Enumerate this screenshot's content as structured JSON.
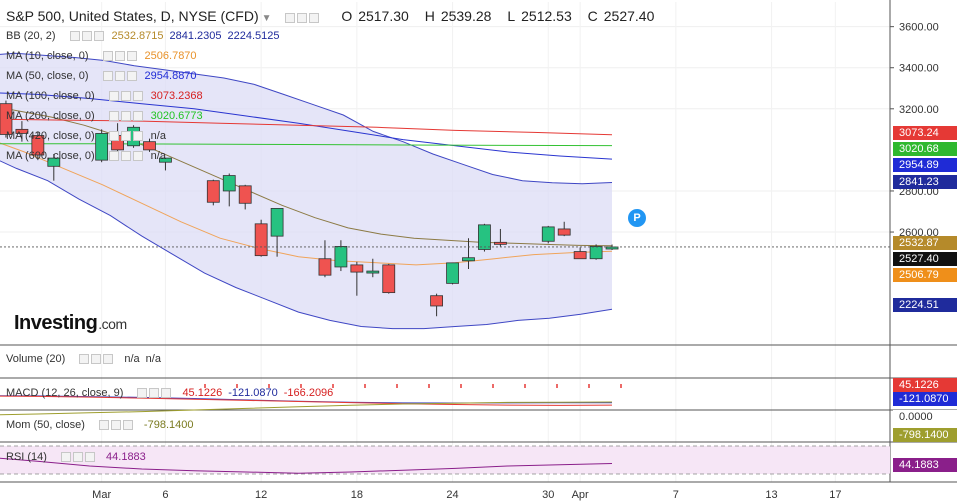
{
  "header": {
    "symbol": "S&P 500, United States, D, NYSE (CFD)",
    "open_label": "O",
    "open": "2517.30",
    "high_label": "H",
    "high": "2539.28",
    "low_label": "L",
    "low": "2512.53",
    "close_label": "C",
    "close": "2527.40"
  },
  "indicators": [
    {
      "label": "BB (20, 2)",
      "values": [
        {
          "text": "2532.8715",
          "color": "#b58a2a"
        },
        {
          "text": "2841.2305",
          "color": "#1f2b9c"
        },
        {
          "text": "2224.5125",
          "color": "#1f2b9c"
        }
      ]
    },
    {
      "label": "MA (10, close, 0)",
      "values": [
        {
          "text": "2506.7870",
          "color": "#e8922a"
        }
      ]
    },
    {
      "label": "MA (50, close, 0)",
      "values": [
        {
          "text": "2954.8870",
          "color": "#1f2bd6"
        }
      ]
    },
    {
      "label": "MA (100, close, 0)",
      "values": [
        {
          "text": "3073.2368",
          "color": "#d62020"
        }
      ]
    },
    {
      "label": "MA (200, close, 0)",
      "values": [
        {
          "text": "3020.6773",
          "color": "#22c422"
        }
      ]
    },
    {
      "label": "MA (420, close, 0)",
      "values": [
        {
          "text": "n/a",
          "color": "#333333"
        }
      ]
    },
    {
      "label": "MA (600, close, 0)",
      "values": [
        {
          "text": "n/a",
          "color": "#333333"
        }
      ]
    }
  ],
  "logo": {
    "name": "Investing",
    "suffix": ".com",
    "badge": "P"
  },
  "panels": {
    "volume": {
      "label": "Volume (20)",
      "values": [
        "n/a",
        "n/a"
      ]
    },
    "macd": {
      "label": "MACD (12, 26, close, 9)",
      "values": [
        {
          "text": "45.1226",
          "color": "#d62020"
        },
        {
          "text": "-121.0870",
          "color": "#1f2b9c"
        },
        {
          "text": "-166.2096",
          "color": "#d62020"
        }
      ],
      "tags": [
        "45.1226",
        "-121.0870"
      ]
    },
    "mom": {
      "label": "Mom (50, close)",
      "value": "-798.1400",
      "tags": [
        "0.0000",
        "-798.1400"
      ]
    },
    "rsi": {
      "label": "RSI (14)",
      "value": "44.1883",
      "tag": "44.1883"
    }
  },
  "price_tags": [
    {
      "text": "3073.24",
      "value": 3073.24,
      "color": "#e53935"
    },
    {
      "text": "3020.68",
      "value": 3020.68,
      "color": "#2eb82e"
    },
    {
      "text": "2954.89",
      "value": 2954.89,
      "color": "#1f2bd6"
    },
    {
      "text": "2841.23",
      "value": 2841.23,
      "color": "#1f2b9c"
    },
    {
      "text": "2532.87",
      "value": 2532.87,
      "color": "#b58a2a"
    },
    {
      "text": "2527.40",
      "value": 2527.4,
      "color": "#111111"
    },
    {
      "text": "2506.79",
      "value": 2506.79,
      "color": "#ef8f1a"
    },
    {
      "text": "2224.51",
      "value": 2224.51,
      "color": "#1f2b9c"
    }
  ],
  "chart_data": {
    "type": "candlestick",
    "yticks": [
      "3600.00",
      "3400.00",
      "3200.00",
      "2800.00",
      "2600.00"
    ],
    "ytick_values": [
      3600,
      3400,
      3200,
      2800,
      2600
    ],
    "xticks": [
      {
        "label": "Mar",
        "x": "2020-03-02"
      },
      {
        "label": "6",
        "x": "2020-03-06"
      },
      {
        "label": "12",
        "x": "2020-03-12"
      },
      {
        "label": "18",
        "x": "2020-03-18"
      },
      {
        "label": "24",
        "x": "2020-03-24"
      },
      {
        "label": "30",
        "x": "2020-03-30"
      },
      {
        "label": "Apr",
        "x": "2020-04-01"
      },
      {
        "label": "7",
        "x": "2020-04-07"
      },
      {
        "label": "13",
        "x": "2020-04-13"
      },
      {
        "label": "17",
        "x": "2020-04-17"
      }
    ],
    "ylim": [
      2050,
      3720
    ],
    "candles": [
      {
        "date": "2020-02-24",
        "o": 3250,
        "h": 3260,
        "l": 3170,
        "c": 3225
      },
      {
        "date": "2020-02-25",
        "o": 3225,
        "h": 3240,
        "l": 3060,
        "c": 3075
      },
      {
        "date": "2020-02-26",
        "o": 3100,
        "h": 3140,
        "l": 3040,
        "c": 3080
      },
      {
        "date": "2020-02-27",
        "o": 3070,
        "h": 3090,
        "l": 2950,
        "c": 2975
      },
      {
        "date": "2020-02-28",
        "o": 2920,
        "h": 2980,
        "l": 2850,
        "c": 2960
      },
      {
        "date": "2020-03-02",
        "o": 2950,
        "h": 3100,
        "l": 2940,
        "c": 3080
      },
      {
        "date": "2020-03-03",
        "o": 3070,
        "h": 3130,
        "l": 2980,
        "c": 3000
      },
      {
        "date": "2020-03-04",
        "o": 3020,
        "h": 3120,
        "l": 3010,
        "c": 3110
      },
      {
        "date": "2020-03-05",
        "o": 3040,
        "h": 3055,
        "l": 2990,
        "c": 3000
      },
      {
        "date": "2020-03-06",
        "o": 2940,
        "h": 2960,
        "l": 2900,
        "c": 2960
      },
      {
        "date": "2020-03-09",
        "o": 2850,
        "h": 2855,
        "l": 2730,
        "c": 2745
      },
      {
        "date": "2020-03-10",
        "o": 2800,
        "h": 2885,
        "l": 2725,
        "c": 2875
      },
      {
        "date": "2020-03-11",
        "o": 2825,
        "h": 2830,
        "l": 2710,
        "c": 2740
      },
      {
        "date": "2020-03-12",
        "o": 2640,
        "h": 2660,
        "l": 2480,
        "c": 2485
      },
      {
        "date": "2020-03-13",
        "o": 2580,
        "h": 2715,
        "l": 2480,
        "c": 2715
      },
      {
        "date": "2020-03-16",
        "o": 2470,
        "h": 2560,
        "l": 2380,
        "c": 2390
      },
      {
        "date": "2020-03-17",
        "o": 2430,
        "h": 2560,
        "l": 2410,
        "c": 2530
      },
      {
        "date": "2020-03-18",
        "o": 2440,
        "h": 2455,
        "l": 2290,
        "c": 2405
      },
      {
        "date": "2020-03-19",
        "o": 2405,
        "h": 2470,
        "l": 2380,
        "c": 2410
      },
      {
        "date": "2020-03-20",
        "o": 2440,
        "h": 2445,
        "l": 2300,
        "c": 2305
      },
      {
        "date": "2020-03-23",
        "o": 2290,
        "h": 2300,
        "l": 2190,
        "c": 2240
      },
      {
        "date": "2020-03-24",
        "o": 2350,
        "h": 2450,
        "l": 2345,
        "c": 2450
      },
      {
        "date": "2020-03-25",
        "o": 2460,
        "h": 2570,
        "l": 2420,
        "c": 2475
      },
      {
        "date": "2020-03-26",
        "o": 2515,
        "h": 2640,
        "l": 2505,
        "c": 2635
      },
      {
        "date": "2020-03-27",
        "o": 2550,
        "h": 2615,
        "l": 2530,
        "c": 2540
      },
      {
        "date": "2020-03-30",
        "o": 2555,
        "h": 2630,
        "l": 2545,
        "c": 2625
      },
      {
        "date": "2020-03-31",
        "o": 2615,
        "h": 2650,
        "l": 2580,
        "c": 2585
      },
      {
        "date": "2020-04-01",
        "o": 2505,
        "h": 2525,
        "l": 2480,
        "c": 2470
      },
      {
        "date": "2020-04-02",
        "o": 2470,
        "h": 2540,
        "l": 2465,
        "c": 2530
      },
      {
        "date": "2020-04-03",
        "o": 2517.3,
        "h": 2539.28,
        "l": 2512.53,
        "c": 2527.4
      }
    ],
    "bb_upper": [
      3460,
      3470,
      3460,
      3450,
      3435,
      3410,
      3390,
      3370,
      3350,
      3320,
      3270,
      3220,
      3170,
      3090,
      3040,
      2980,
      2930,
      2880,
      2850,
      2840,
      2835,
      2841.23
    ],
    "bb_lower": [
      2980,
      2910,
      2850,
      2760,
      2680,
      2580,
      2490,
      2400,
      2330,
      2270,
      2210,
      2170,
      2140,
      2130,
      2130,
      2140,
      2150,
      2170,
      2180,
      2200,
      2224.51
    ],
    "bb_mid": [
      3220,
      3190,
      3160,
      3120,
      3070,
      3010,
      2940,
      2870,
      2800,
      2730,
      2670,
      2620,
      2590,
      2570,
      2560,
      2550,
      2545,
      2540,
      2535,
      2532.87
    ],
    "ma10": [
      3060,
      2990,
      2910,
      2830,
      2740,
      2650,
      2570,
      2520,
      2480,
      2460,
      2450,
      2440,
      2450,
      2470,
      2490,
      2500,
      2506.79
    ],
    "ma50": [
      3280,
      3270,
      3250,
      3225,
      3200,
      3165,
      3130,
      3090,
      3050,
      3020,
      2990,
      2970,
      2954.89
    ],
    "ma100": [
      3150,
      3145,
      3140,
      3130,
      3120,
      3110,
      3095,
      3085,
      3073.24
    ],
    "ma200": [
      3030,
      3030,
      3028,
      3026,
      3024,
      3022,
      3020.68
    ],
    "macd_line": [
      5,
      2,
      -10,
      -25,
      -45,
      -70,
      -95,
      -115,
      -125,
      -128,
      -126,
      -124,
      -121.087
    ],
    "macd_signal": [
      0,
      -8,
      -20,
      -38,
      -58,
      -80,
      -100,
      -120,
      -140,
      -155,
      -165,
      -170,
      -166.21
    ],
    "macd_hist": [
      45.1226
    ],
    "mom": [
      -150,
      -200,
      -260,
      -320,
      -400,
      -480,
      -560,
      -640,
      -700,
      -740,
      -780,
      -790,
      -798.14
    ],
    "rsi": [
      55,
      48,
      40,
      35,
      32,
      30,
      28,
      30,
      33,
      36,
      40,
      42,
      44.1883
    ],
    "grid": true,
    "legend": "top-left"
  }
}
